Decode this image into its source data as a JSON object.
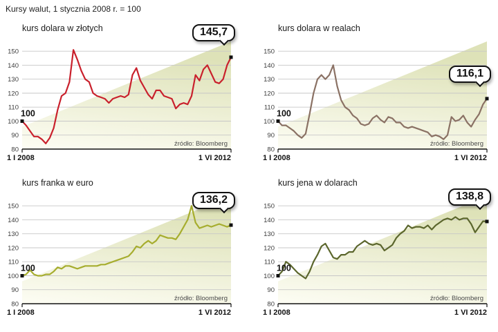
{
  "page_title": "Kursy walut, 1 stycznia 2008 r. = 100",
  "source_label": "źródło: Bloomberg",
  "axis": {
    "y_ticks": [
      150,
      140,
      130,
      120,
      110,
      100,
      90,
      80
    ],
    "x_start": "1 I 2008",
    "x_end": "1 VI 2012",
    "ylim": [
      80,
      157
    ]
  },
  "wedge": {
    "bottom_color": "#fdfdf4",
    "top_color": "#dee2b8"
  },
  "chart_data": [
    {
      "type": "line",
      "title": "kurs dolara w złotych",
      "color": "#c9202c",
      "start_label": "100",
      "end_label": "145,7",
      "x_start": "1 I 2008",
      "x_end": "1 VI 2012",
      "ylim": [
        80,
        157
      ],
      "values": [
        100,
        97,
        93,
        89,
        89,
        87,
        84,
        88,
        95,
        108,
        118,
        120,
        128,
        151,
        144,
        136,
        130,
        128,
        120,
        118,
        117,
        116,
        113,
        116,
        117,
        118,
        117,
        119,
        133,
        138,
        129,
        124,
        119,
        116,
        122,
        122,
        118,
        117,
        116,
        109,
        112,
        113,
        112,
        118,
        133,
        129,
        137,
        140,
        134,
        128,
        127,
        130,
        140,
        145.7
      ]
    },
    {
      "type": "line",
      "title": "kurs dolara w realach",
      "color": "#8a7164",
      "start_label": "100",
      "end_label": "116,1",
      "x_start": "1 I 2008",
      "x_end": "1 VI 2012",
      "ylim": [
        80,
        157
      ],
      "values": [
        100,
        97,
        97,
        95,
        93,
        90,
        88,
        91,
        105,
        120,
        130,
        133,
        130,
        133,
        140,
        125,
        115,
        110,
        108,
        104,
        102,
        98,
        97,
        98,
        102,
        104,
        101,
        99,
        103,
        102,
        99,
        99,
        96,
        95,
        96,
        95,
        94,
        93,
        92,
        89,
        90,
        89,
        87,
        90,
        103,
        100,
        101,
        104,
        99,
        96,
        101,
        105,
        112,
        116.1
      ]
    },
    {
      "type": "line",
      "title": "kurs franka w euro",
      "color": "#a6ad2e",
      "start_label": "100",
      "end_label": "136,2",
      "x_start": "1 I 2008",
      "x_end": "1 VI 2012",
      "ylim": [
        80,
        157
      ],
      "values": [
        100,
        101,
        104,
        101,
        100,
        100,
        101,
        101,
        103,
        106,
        105,
        107,
        107,
        106,
        105,
        106,
        107,
        107,
        107,
        107,
        108,
        108,
        109,
        110,
        111,
        112,
        113,
        114,
        117,
        121,
        120,
        123,
        125,
        123,
        125,
        129,
        128,
        127,
        127,
        126,
        130,
        135,
        140,
        150,
        138,
        134,
        135,
        136,
        135,
        136,
        137,
        136,
        135,
        136.2
      ]
    },
    {
      "type": "line",
      "title": "kurs jena w dolarach",
      "color": "#5b662c",
      "start_label": "100",
      "end_label": "138,8",
      "x_start": "1 I 2008",
      "x_end": "1 VI 2012",
      "ylim": [
        80,
        157
      ],
      "values": [
        100,
        103,
        110,
        108,
        105,
        102,
        100,
        98,
        103,
        110,
        115,
        121,
        123,
        118,
        113,
        112,
        115,
        115,
        117,
        117,
        121,
        123,
        125,
        123,
        122,
        123,
        122,
        118,
        120,
        122,
        127,
        130,
        132,
        136,
        134,
        135,
        135,
        134,
        136,
        133,
        136,
        138,
        140,
        141,
        140,
        142,
        140,
        141,
        141,
        137,
        131,
        135,
        139,
        138.8
      ]
    }
  ]
}
